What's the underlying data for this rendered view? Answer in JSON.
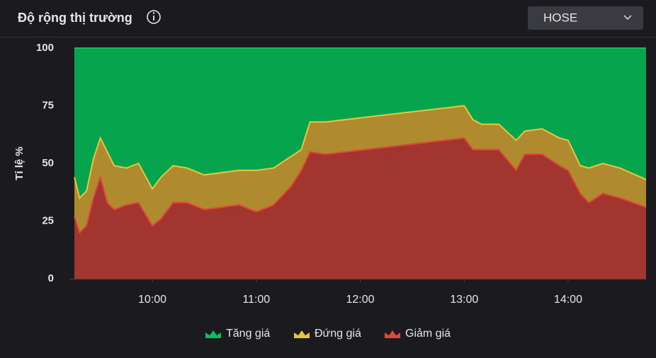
{
  "header": {
    "title": "Độ rộng thị trường",
    "dropdown": "HOSE"
  },
  "chart_data": {
    "type": "stacked_area",
    "y_label": "Tỉ lệ %",
    "x": [
      555,
      558,
      562,
      566,
      570,
      574,
      578,
      585,
      592,
      600,
      605,
      612,
      620,
      630,
      640,
      650,
      660,
      670,
      680,
      686,
      691,
      700,
      780,
      785,
      790,
      800,
      810,
      815,
      825,
      835,
      840,
      847,
      852,
      860,
      870,
      885
    ],
    "xlim": [
      555,
      885
    ],
    "xticks": [
      {
        "value": 600,
        "label": "10:00"
      },
      {
        "value": 660,
        "label": "11:00"
      },
      {
        "value": 720,
        "label": "12:00"
      },
      {
        "value": 780,
        "label": "13:00"
      },
      {
        "value": 840,
        "label": "14:00"
      }
    ],
    "ylim": [
      0,
      100
    ],
    "yticks": [
      0,
      25,
      50,
      75,
      100
    ],
    "grid": false,
    "legend": "bottom",
    "series": [
      {
        "name": "Tăng giá",
        "color": "#07a44e",
        "line_color": "#0bbf5c",
        "values": [
          56,
          65,
          62,
          48,
          39,
          45,
          51,
          52,
          50,
          61,
          56,
          51,
          52,
          55,
          54,
          53,
          53,
          52,
          47,
          44,
          32,
          32,
          25,
          31,
          33,
          33,
          40,
          36,
          35,
          39,
          40,
          51,
          52,
          50,
          52,
          57
        ]
      },
      {
        "name": "Đứng giá",
        "color": "#b08a2e",
        "line_color": "#e8c43f",
        "values": [
          17,
          15,
          15,
          17,
          17,
          22,
          19,
          16,
          17,
          16,
          18,
          16,
          15,
          15,
          15,
          15,
          18,
          16,
          13,
          9,
          13,
          14,
          14,
          13,
          11,
          11,
          13,
          10,
          11,
          12,
          13,
          12,
          15,
          13,
          13,
          12
        ]
      },
      {
        "name": "Giảm giá",
        "color": "#a33530",
        "line_color": "#e0463a",
        "values": [
          27,
          20,
          23,
          35,
          44,
          33,
          30,
          32,
          33,
          23,
          26,
          33,
          33,
          30,
          31,
          32,
          29,
          32,
          40,
          47,
          55,
          54,
          61,
          56,
          56,
          56,
          47,
          54,
          54,
          49,
          47,
          37,
          33,
          37,
          35,
          31
        ]
      }
    ]
  }
}
